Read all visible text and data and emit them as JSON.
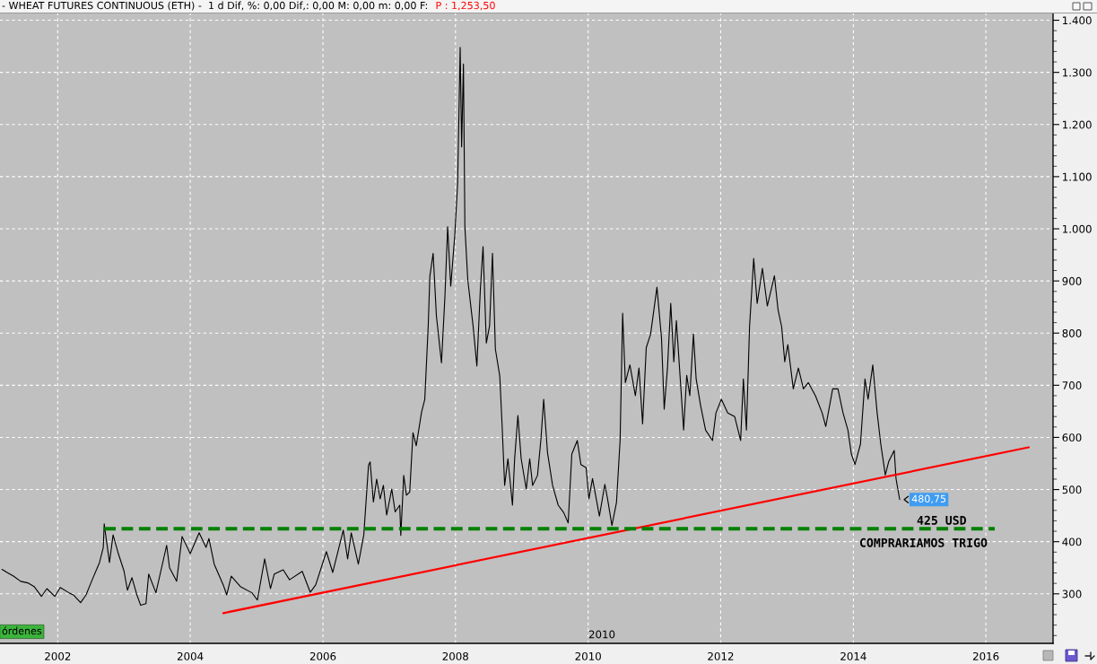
{
  "chart_data": {
    "type": "line",
    "title": "- WHEAT FUTURES CONTINUOUS (ETH) -  1 d Dif, %: 0,00 Dif,: 0,00 M: 0,00 m: 0,00 F:",
    "subtitle": "P : 1,253,50",
    "xlim": [
      "2001-02-17",
      "2017-01-05"
    ],
    "xticks": [
      "2002",
      "2004",
      "2006",
      "2008",
      "2010",
      "2012",
      "2014",
      "2016"
    ],
    "ylim": [
      205,
      1413
    ],
    "yticks": [
      300,
      400,
      500,
      600,
      700,
      800,
      900,
      {
        "value": 1000,
        "label": "1.000"
      },
      {
        "value": 1100,
        "label": "1.100"
      },
      {
        "value": 1200,
        "label": "1.200"
      },
      {
        "value": 1300,
        "label": "1.300"
      },
      {
        "value": 1400,
        "label": "1.400"
      }
    ],
    "grid": true,
    "series": [
      {
        "color": "#000000",
        "x": [
          "2001-02-28",
          "2001-03-28",
          "2001-05-02",
          "2001-06-11",
          "2001-07-20",
          "2001-08-24",
          "2001-10-03",
          "2001-11-02",
          "2001-12-16",
          "2002-01-15",
          "2002-03-04",
          "2002-03-28",
          "2002-05-07",
          "2002-06-06",
          "2002-07-10",
          "2002-08-19",
          "2002-09-09",
          "2002-09-14",
          "2002-10-13",
          "2002-11-02",
          "2002-12-01",
          "2003-01-01",
          "2003-01-20",
          "2003-02-14",
          "2003-03-13",
          "2003-04-03",
          "2003-05-02",
          "2003-05-17",
          "2003-06-26",
          "2003-08-24",
          "2003-09-09",
          "2003-10-18",
          "2003-11-17",
          "2004-01-01",
          "2004-02-19",
          "2004-03-28",
          "2004-04-13",
          "2004-05-12",
          "2004-07-01",
          "2004-07-20",
          "2004-08-14",
          "2004-10-03",
          "2004-12-06",
          "2005-01-05",
          "2005-02-14",
          "2005-03-18",
          "2005-04-08",
          "2005-05-27",
          "2005-07-01",
          "2005-09-09",
          "2005-10-23",
          "2005-11-22",
          "2006-01-20",
          "2006-02-24",
          "2006-04-23",
          "2006-05-17",
          "2006-06-06",
          "2006-07-15",
          "2006-08-14",
          "2006-09-09",
          "2006-09-18",
          "2006-10-06",
          "2006-10-24",
          "2006-11-12",
          "2006-11-30",
          "2006-12-18",
          "2007-01-15",
          "2007-02-03",
          "2007-02-28",
          "2007-03-06",
          "2007-03-22",
          "2007-04-06",
          "2007-04-24",
          "2007-05-12",
          "2007-05-30",
          "2007-06-28",
          "2007-07-16",
          "2007-08-04",
          "2007-08-13",
          "2007-08-31",
          "2007-09-18",
          "2007-10-16",
          "2007-11-04",
          "2007-11-19",
          "2007-12-06",
          "2007-12-28",
          "2008-01-13",
          "2008-01-27",
          "2008-02-04",
          "2008-02-14",
          "2008-02-22",
          "2008-03-09",
          "2008-04-07",
          "2008-04-28",
          "2008-05-17",
          "2008-06-01",
          "2008-06-19",
          "2008-07-07",
          "2008-07-23",
          "2008-08-08",
          "2008-09-01",
          "2008-09-14",
          "2008-09-28",
          "2008-10-16",
          "2008-11-10",
          "2008-11-22",
          "2008-12-10",
          "2008-12-28",
          "2009-01-25",
          "2009-02-13",
          "2009-03-01",
          "2009-03-28",
          "2009-04-16",
          "2009-05-01",
          "2009-05-22",
          "2009-06-19",
          "2009-07-20",
          "2009-08-19",
          "2009-09-13",
          "2009-10-03",
          "2009-11-02",
          "2009-11-22",
          "2009-12-21",
          "2010-01-05",
          "2010-01-25",
          "2010-03-04",
          "2010-04-03",
          "2010-04-18",
          "2010-05-12",
          "2010-06-06",
          "2010-06-26",
          "2010-07-10",
          "2010-07-25",
          "2010-08-19",
          "2010-09-18",
          "2010-10-08",
          "2010-10-28",
          "2010-11-17",
          "2010-12-11",
          "2011-01-15",
          "2011-02-09",
          "2011-02-24",
          "2011-03-14",
          "2011-04-01",
          "2011-04-18",
          "2011-05-02",
          "2011-05-22",
          "2011-06-11",
          "2011-06-28",
          "2011-07-15",
          "2011-08-04",
          "2011-08-19",
          "2011-09-13",
          "2011-10-10",
          "2011-11-17",
          "2011-12-06",
          "2012-01-05",
          "2012-02-09",
          "2012-03-18",
          "2012-04-20",
          "2012-05-05",
          "2012-05-22",
          "2012-06-08",
          "2012-07-01",
          "2012-07-20",
          "2012-08-18",
          "2012-09-14",
          "2012-10-23",
          "2012-11-12",
          "2012-12-02",
          "2012-12-19",
          "2013-01-05",
          "2013-02-04",
          "2013-03-04",
          "2013-04-01",
          "2013-04-28",
          "2013-06-06",
          "2013-07-13",
          "2013-08-02",
          "2013-09-09",
          "2013-10-08",
          "2013-11-05",
          "2013-12-02",
          "2013-12-21",
          "2014-01-10",
          "2014-02-09",
          "2014-03-06",
          "2014-03-23",
          "2014-04-18",
          "2014-05-12",
          "2014-06-01",
          "2014-06-26",
          "2014-07-15",
          "2014-08-14",
          "2014-08-24",
          "2014-09-13"
        ],
        "values": [
          347,
          341,
          334,
          324,
          321,
          314,
          295,
          310,
          295,
          312,
          302,
          298,
          283,
          298,
          327,
          360,
          389,
          434,
          360,
          413,
          377,
          344,
          307,
          331,
          298,
          278,
          281,
          338,
          302,
          393,
          350,
          324,
          410,
          377,
          417,
          389,
          406,
          357,
          317,
          298,
          334,
          314,
          302,
          288,
          367,
          310,
          338,
          346,
          327,
          343,
          303,
          317,
          381,
          341,
          422,
          367,
          417,
          357,
          413,
          546,
          553,
          476,
          520,
          482,
          508,
          451,
          501,
          457,
          470,
          412,
          527,
          489,
          495,
          609,
          584,
          648,
          673,
          814,
          909,
          953,
          833,
          743,
          870,
          1004,
          890,
          986,
          1087,
          1348,
          1157,
          1316,
          1004,
          902,
          814,
          737,
          883,
          966,
          781,
          814,
          953,
          769,
          718,
          623,
          508,
          559,
          470,
          559,
          642,
          559,
          501,
          559,
          508,
          527,
          597,
          673,
          571,
          508,
          470,
          456,
          436,
          568,
          594,
          548,
          542,
          482,
          521,
          449,
          510,
          482,
          431,
          475,
          594,
          838,
          705,
          739,
          680,
          733,
          626,
          772,
          798,
          888,
          791,
          654,
          733,
          857,
          745,
          824,
          719,
          614,
          719,
          680,
          798,
          712,
          660,
          614,
          594,
          647,
          673,
          647,
          640,
          594,
          712,
          614,
          812,
          943,
          857,
          924,
          852,
          910,
          845,
          812,
          745,
          778,
          693,
          733,
          693,
          705,
          680,
          647,
          621,
          693,
          693,
          647,
          614,
          568,
          548,
          587,
          712,
          673,
          739,
          647,
          587,
          528,
          554,
          575,
          521,
          480.75
        ],
        "value_labels": [
          null,
          null,
          null,
          null,
          null,
          null,
          null,
          null,
          null,
          null,
          null,
          null,
          null,
          null,
          null,
          null,
          null,
          null,
          null,
          null,
          null,
          null,
          null,
          null,
          null,
          null,
          null,
          null,
          null,
          null,
          null,
          null,
          null,
          null,
          null,
          null,
          null,
          null,
          null,
          null,
          null,
          null,
          null,
          null,
          null,
          null,
          null,
          null,
          null,
          null,
          null,
          null,
          null,
          null,
          null,
          null,
          null,
          null,
          null,
          null,
          null,
          null,
          null,
          null,
          null,
          null,
          null,
          null,
          null,
          null,
          null,
          null,
          null,
          null,
          null,
          null,
          null,
          null,
          null,
          null,
          null,
          null,
          null,
          null,
          null,
          null,
          null,
          null,
          null,
          null,
          null,
          null,
          null,
          null,
          null,
          null,
          null,
          null,
          null,
          null,
          null,
          null,
          null,
          null,
          null,
          null,
          null,
          null,
          null,
          null,
          null,
          null,
          null,
          null,
          null,
          null,
          null,
          null,
          null,
          null,
          null,
          null,
          null,
          null,
          null,
          null,
          null,
          null,
          null,
          null,
          null,
          null,
          null,
          null,
          null,
          null,
          null,
          null,
          null,
          null,
          null,
          null,
          null,
          null,
          null,
          null,
          null,
          null,
          null,
          null,
          null,
          null,
          null,
          null,
          null,
          null,
          null,
          null,
          null,
          null,
          null,
          null,
          null,
          null,
          null,
          null,
          null,
          null,
          null,
          null,
          null,
          null,
          null,
          null,
          null,
          null,
          null,
          null,
          null,
          null,
          null,
          null,
          null,
          null,
          null,
          null,
          null,
          null,
          null,
          null,
          null,
          null,
          null,
          null,
          null,
          "480,75"
        ]
      },
      {
        "color": "#ff0000",
        "x": [
          "2004-07-01",
          "2016-08-24"
        ],
        "values": [
          263,
          581
        ]
      },
      {
        "color": "#008000",
        "line_style": "dashed",
        "x": [
          "2002-09-14",
          "2016-02-19"
        ],
        "values": [
          425,
          425
        ]
      }
    ],
    "annotations": [
      "425 USD",
      "COMPRARIAMOS TRIGO",
      "2010",
      "órdenes"
    ]
  }
}
